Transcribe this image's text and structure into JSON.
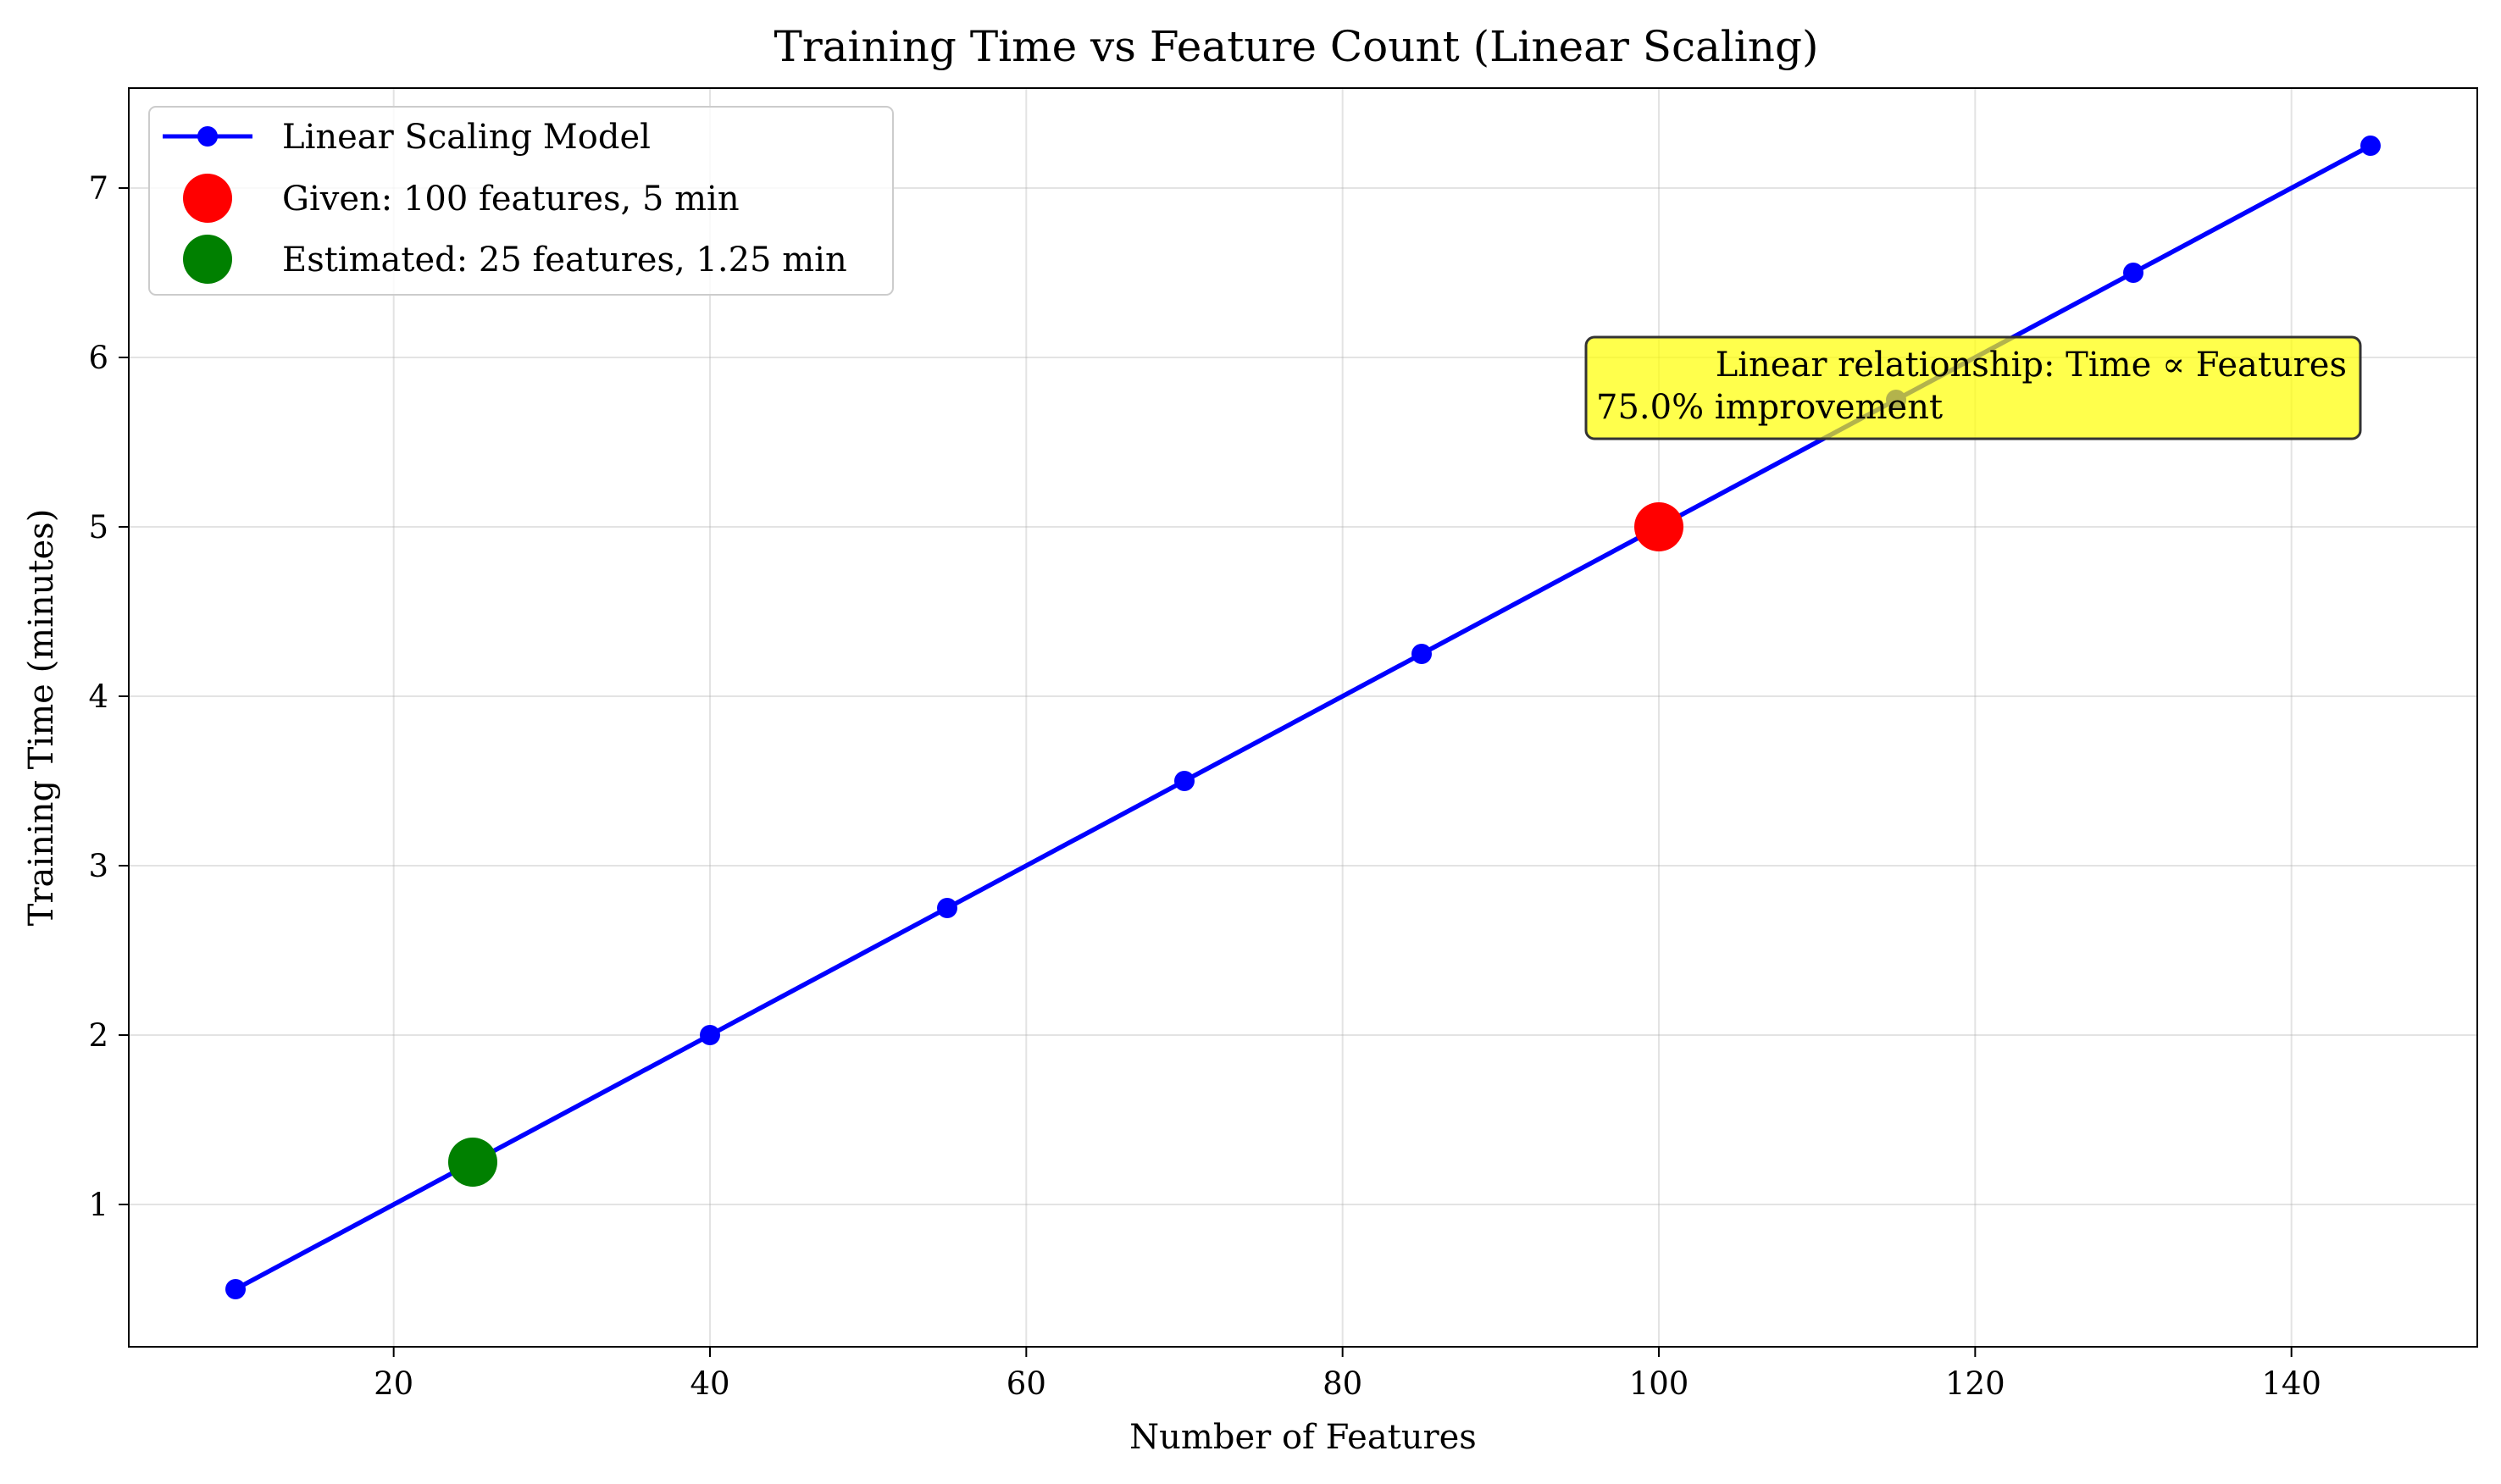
{
  "chart_data": {
    "type": "line",
    "title": "Training Time vs Feature Count (Linear Scaling)",
    "xlabel": "Number of Features",
    "ylabel": "Training Time (minutes)",
    "xlim": [
      3.25,
      151.75
    ],
    "ylim": [
      0.16,
      7.59
    ],
    "xticks": [
      20,
      40,
      60,
      80,
      100,
      120,
      140
    ],
    "yticks": [
      1,
      2,
      3,
      4,
      5,
      6,
      7
    ],
    "grid": true,
    "legend_position": "top-left",
    "series": [
      {
        "name": "Linear Scaling Model",
        "color": "#0000ff",
        "style": "line-with-markers",
        "x": [
          10,
          25,
          40,
          55,
          70,
          85,
          100,
          115,
          130,
          145
        ],
        "y": [
          0.5,
          1.25,
          2.0,
          2.75,
          3.5,
          4.25,
          5.0,
          5.75,
          6.5,
          7.25
        ],
        "marker_x": [
          10,
          40,
          55,
          70,
          85,
          115,
          130,
          145
        ],
        "marker_y": [
          0.5,
          2.0,
          2.75,
          3.5,
          4.25,
          5.75,
          6.5,
          7.25
        ]
      },
      {
        "name": "Given: 100 features, 5 min",
        "color": "#ff0000",
        "style": "point",
        "x": [
          100
        ],
        "y": [
          5.0
        ]
      },
      {
        "name": "Estimated: 25 features, 1.25 min",
        "color": "#008000",
        "style": "point",
        "x": [
          25
        ],
        "y": [
          1.25
        ]
      }
    ],
    "annotation": {
      "line1": "Linear relationship: Time ∝ Features",
      "line2": "75.0% improvement",
      "background": "#ffff00"
    }
  }
}
